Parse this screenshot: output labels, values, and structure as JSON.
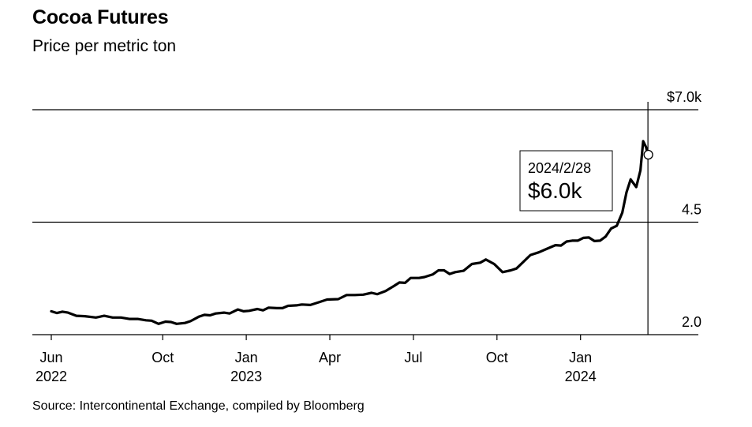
{
  "header": {
    "title": "Cocoa Futures",
    "subtitle": "Price per metric ton"
  },
  "footer": {
    "source": "Source: Intercontinental Exchange, compiled by Bloomberg"
  },
  "tooltip": {
    "date": "2024/2/28",
    "value": "$6.0k"
  },
  "chart_data": {
    "type": "line",
    "title": "Cocoa Futures",
    "subtitle": "Price per metric ton",
    "x_unit": "months since Jun 2022",
    "ylim": [
      2.0,
      7.0
    ],
    "y_ticks": [
      {
        "value": 7.0,
        "label": "$7.0k"
      },
      {
        "value": 4.5,
        "label": "4.5"
      },
      {
        "value": 2.0,
        "label": "2.0"
      }
    ],
    "x_ticks": [
      {
        "t": 0,
        "label": "Jun",
        "sub": "2022"
      },
      {
        "t": 4,
        "label": "Oct",
        "sub": ""
      },
      {
        "t": 7,
        "label": "Jan",
        "sub": "2023"
      },
      {
        "t": 10,
        "label": "Apr",
        "sub": ""
      },
      {
        "t": 13,
        "label": "Jul",
        "sub": ""
      },
      {
        "t": 16,
        "label": "Oct",
        "sub": ""
      },
      {
        "t": 19,
        "label": "Jan",
        "sub": "2024"
      }
    ],
    "grid": "horizontal",
    "highlight": {
      "label": "2024/2/28",
      "value": 6.0
    },
    "series": [
      {
        "name": "",
        "color": "#000000",
        "points": [
          [
            0.0,
            2.52
          ],
          [
            0.2,
            2.48
          ],
          [
            0.4,
            2.51
          ],
          [
            0.6,
            2.49
          ],
          [
            0.9,
            2.42
          ],
          [
            1.2,
            2.41
          ],
          [
            1.6,
            2.38
          ],
          [
            1.9,
            2.42
          ],
          [
            2.2,
            2.38
          ],
          [
            2.5,
            2.38
          ],
          [
            2.8,
            2.35
          ],
          [
            3.1,
            2.35
          ],
          [
            3.4,
            2.32
          ],
          [
            3.6,
            2.31
          ],
          [
            3.85,
            2.24
          ],
          [
            4.1,
            2.29
          ],
          [
            4.3,
            2.28
          ],
          [
            4.5,
            2.24
          ],
          [
            4.8,
            2.26
          ],
          [
            5.0,
            2.3
          ],
          [
            5.3,
            2.4
          ],
          [
            5.5,
            2.44
          ],
          [
            5.7,
            2.43
          ],
          [
            5.9,
            2.47
          ],
          [
            6.2,
            2.49
          ],
          [
            6.4,
            2.47
          ],
          [
            6.7,
            2.56
          ],
          [
            6.9,
            2.52
          ],
          [
            7.1,
            2.53
          ],
          [
            7.4,
            2.57
          ],
          [
            7.6,
            2.54
          ],
          [
            7.8,
            2.6
          ],
          [
            8.1,
            2.59
          ],
          [
            8.3,
            2.59
          ],
          [
            8.5,
            2.64
          ],
          [
            8.8,
            2.65
          ],
          [
            9.0,
            2.67
          ],
          [
            9.3,
            2.66
          ],
          [
            9.6,
            2.72
          ],
          [
            9.9,
            2.78
          ],
          [
            10.3,
            2.79
          ],
          [
            10.6,
            2.88
          ],
          [
            10.9,
            2.88
          ],
          [
            11.2,
            2.89
          ],
          [
            11.5,
            2.93
          ],
          [
            11.7,
            2.9
          ],
          [
            12.0,
            2.97
          ],
          [
            12.3,
            3.08
          ],
          [
            12.5,
            3.16
          ],
          [
            12.7,
            3.15
          ],
          [
            12.9,
            3.26
          ],
          [
            13.2,
            3.26
          ],
          [
            13.4,
            3.28
          ],
          [
            13.7,
            3.34
          ],
          [
            13.9,
            3.43
          ],
          [
            14.1,
            3.43
          ],
          [
            14.3,
            3.35
          ],
          [
            14.5,
            3.39
          ],
          [
            14.8,
            3.42
          ],
          [
            15.1,
            3.57
          ],
          [
            15.4,
            3.6
          ],
          [
            15.6,
            3.67
          ],
          [
            15.9,
            3.57
          ],
          [
            16.2,
            3.39
          ],
          [
            16.5,
            3.43
          ],
          [
            16.7,
            3.47
          ],
          [
            16.9,
            3.59
          ],
          [
            17.2,
            3.77
          ],
          [
            17.5,
            3.83
          ],
          [
            17.8,
            3.91
          ],
          [
            18.1,
            3.99
          ],
          [
            18.3,
            3.98
          ],
          [
            18.5,
            4.07
          ],
          [
            18.7,
            4.09
          ],
          [
            18.9,
            4.09
          ],
          [
            19.1,
            4.15
          ],
          [
            19.3,
            4.16
          ],
          [
            19.5,
            4.08
          ],
          [
            19.7,
            4.09
          ],
          [
            19.9,
            4.18
          ],
          [
            20.1,
            4.36
          ],
          [
            20.3,
            4.42
          ],
          [
            20.5,
            4.71
          ],
          [
            20.65,
            5.16
          ],
          [
            20.8,
            5.45
          ],
          [
            21.0,
            5.28
          ],
          [
            21.15,
            5.65
          ],
          [
            21.25,
            6.3
          ],
          [
            21.35,
            6.17
          ],
          [
            21.42,
            6.0
          ]
        ]
      }
    ]
  }
}
